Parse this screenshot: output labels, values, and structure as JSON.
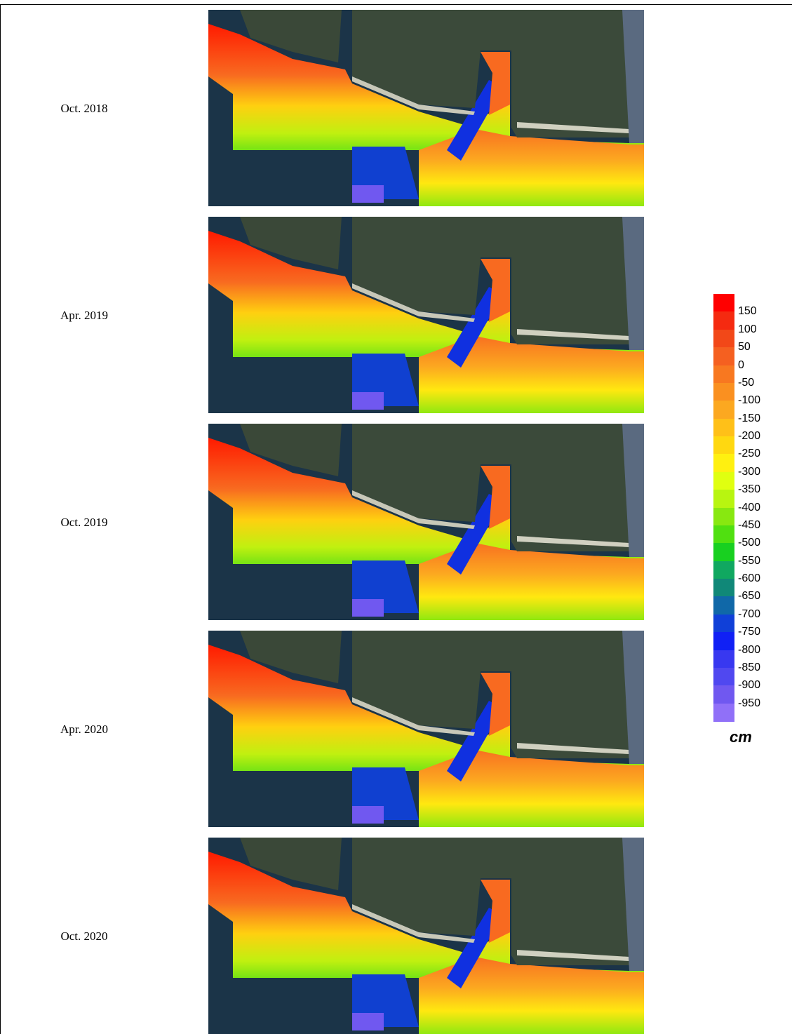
{
  "rows": [
    {
      "label": "Oct. 2018"
    },
    {
      "label": "Apr. 2019"
    },
    {
      "label": "Oct. 2019"
    },
    {
      "label": "Apr. 2020"
    },
    {
      "label": "Oct. 2020"
    }
  ],
  "colorbar": {
    "levels": [
      150,
      100,
      50,
      0,
      -50,
      -100,
      -150,
      -200,
      -250,
      -300,
      -350,
      -400,
      -450,
      -500,
      -550,
      -600,
      -650,
      -700,
      -750,
      -800,
      -850,
      -900,
      -950
    ],
    "colors": [
      "#ff0000",
      "#f52a10",
      "#f24818",
      "#f56020",
      "#f87820",
      "#fa9020",
      "#fca820",
      "#ffc018",
      "#ffd810",
      "#fff010",
      "#e0ff10",
      "#b8f510",
      "#88e810",
      "#50e010",
      "#18d020",
      "#10a860",
      "#108878",
      "#1068a8",
      "#1040d8",
      "#1020f5",
      "#3838f0",
      "#5048f0",
      "#7058f0",
      "#9070f8"
    ],
    "unit": "cm"
  }
}
